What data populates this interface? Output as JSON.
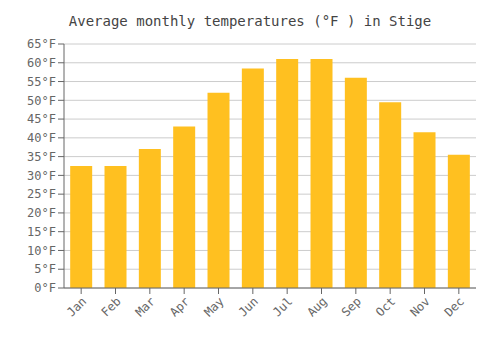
{
  "chart_data": {
    "type": "bar",
    "title": "Average monthly temperatures (°F ) in Stige",
    "categories": [
      "Jan",
      "Feb",
      "Mar",
      "Apr",
      "May",
      "Jun",
      "Jul",
      "Aug",
      "Sep",
      "Oct",
      "Nov",
      "Dec"
    ],
    "values": [
      32.5,
      32.5,
      37,
      43,
      52,
      58.5,
      61,
      61,
      56,
      49.5,
      41.5,
      35.5
    ],
    "color": "#FFC020",
    "ylim": [
      0,
      65
    ],
    "yticks": [
      {
        "value": 0,
        "label": "0°F"
      },
      {
        "value": 5,
        "label": "5°F"
      },
      {
        "value": 10,
        "label": "10°F"
      },
      {
        "value": 15,
        "label": "15°F"
      },
      {
        "value": 20,
        "label": "20°F"
      },
      {
        "value": 25,
        "label": "25°F"
      },
      {
        "value": 30,
        "label": "30°F"
      },
      {
        "value": 35,
        "label": "35°F"
      },
      {
        "value": 40,
        "label": "40°F"
      },
      {
        "value": 45,
        "label": "45°F"
      },
      {
        "value": 50,
        "label": "50°F"
      },
      {
        "value": 55,
        "label": "55°F"
      },
      {
        "value": 60,
        "label": "60°F"
      },
      {
        "value": 65,
        "label": "65°F"
      }
    ],
    "grid": true
  }
}
